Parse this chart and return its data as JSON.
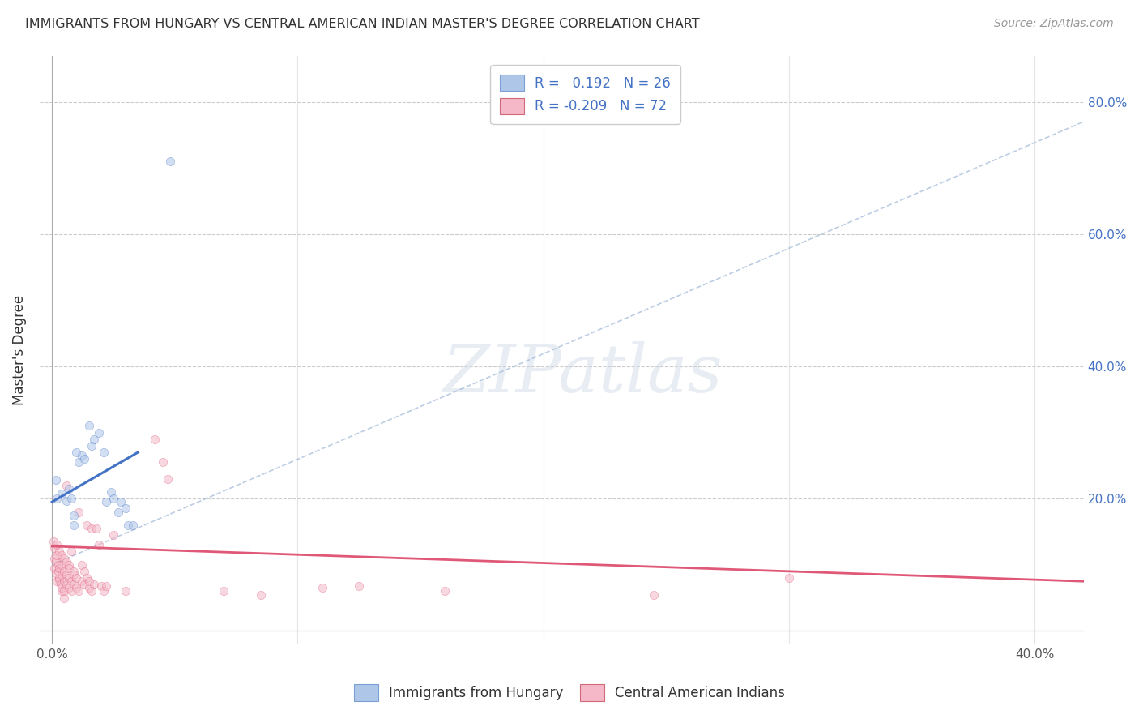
{
  "title": "IMMIGRANTS FROM HUNGARY VS CENTRAL AMERICAN INDIAN MASTER'S DEGREE CORRELATION CHART",
  "source": "Source: ZipAtlas.com",
  "ylabel": "Master's Degree",
  "xlabel_ticks": [
    "0.0%",
    "",
    "",
    "",
    "40.0%"
  ],
  "xtick_vals": [
    0.0,
    0.1,
    0.2,
    0.3,
    0.4
  ],
  "ylabel_right_ticks": [
    "",
    "20.0%",
    "40.0%",
    "60.0%",
    "80.0%"
  ],
  "ytick_vals": [
    0.0,
    0.2,
    0.4,
    0.6,
    0.8
  ],
  "xlim": [
    -0.005,
    0.42
  ],
  "ylim": [
    -0.02,
    0.87
  ],
  "legend1_label": "R =   0.192   N = 26",
  "legend2_label": "R = -0.209   N = 72",
  "legend1_color": "#aec6e8",
  "legend2_color": "#f4b8c8",
  "trendline1_color": "#4472c4",
  "trendline2_color": "#e05878",
  "watermark_text": "ZIPatlas",
  "blue_scatter": [
    [
      0.0015,
      0.228
    ],
    [
      0.004,
      0.207
    ],
    [
      0.006,
      0.197
    ],
    [
      0.007,
      0.215
    ],
    [
      0.008,
      0.2
    ],
    [
      0.009,
      0.175
    ],
    [
      0.009,
      0.16
    ],
    [
      0.01,
      0.27
    ],
    [
      0.011,
      0.255
    ],
    [
      0.012,
      0.265
    ],
    [
      0.013,
      0.26
    ],
    [
      0.015,
      0.31
    ],
    [
      0.016,
      0.28
    ],
    [
      0.017,
      0.29
    ],
    [
      0.019,
      0.3
    ],
    [
      0.021,
      0.27
    ],
    [
      0.022,
      0.195
    ],
    [
      0.024,
      0.21
    ],
    [
      0.025,
      0.2
    ],
    [
      0.027,
      0.18
    ],
    [
      0.028,
      0.195
    ],
    [
      0.03,
      0.185
    ],
    [
      0.031,
      0.16
    ],
    [
      0.033,
      0.16
    ],
    [
      0.048,
      0.71
    ],
    [
      0.002,
      0.2
    ]
  ],
  "pink_scatter": [
    [
      0.0005,
      0.135
    ],
    [
      0.0008,
      0.11
    ],
    [
      0.001,
      0.095
    ],
    [
      0.001,
      0.125
    ],
    [
      0.0015,
      0.105
    ],
    [
      0.0015,
      0.088
    ],
    [
      0.002,
      0.075
    ],
    [
      0.002,
      0.13
    ],
    [
      0.002,
      0.115
    ],
    [
      0.0025,
      0.1
    ],
    [
      0.0025,
      0.09
    ],
    [
      0.003,
      0.078
    ],
    [
      0.003,
      0.12
    ],
    [
      0.003,
      0.095
    ],
    [
      0.003,
      0.08
    ],
    [
      0.0035,
      0.07
    ],
    [
      0.004,
      0.06
    ],
    [
      0.004,
      0.115
    ],
    [
      0.004,
      0.1
    ],
    [
      0.004,
      0.085
    ],
    [
      0.004,
      0.065
    ],
    [
      0.005,
      0.05
    ],
    [
      0.005,
      0.11
    ],
    [
      0.005,
      0.09
    ],
    [
      0.005,
      0.075
    ],
    [
      0.005,
      0.06
    ],
    [
      0.006,
      0.22
    ],
    [
      0.006,
      0.105
    ],
    [
      0.006,
      0.085
    ],
    [
      0.006,
      0.07
    ],
    [
      0.007,
      0.1
    ],
    [
      0.007,
      0.08
    ],
    [
      0.007,
      0.065
    ],
    [
      0.007,
      0.095
    ],
    [
      0.008,
      0.075
    ],
    [
      0.008,
      0.06
    ],
    [
      0.008,
      0.12
    ],
    [
      0.009,
      0.09
    ],
    [
      0.009,
      0.07
    ],
    [
      0.009,
      0.085
    ],
    [
      0.01,
      0.065
    ],
    [
      0.01,
      0.08
    ],
    [
      0.011,
      0.06
    ],
    [
      0.011,
      0.18
    ],
    [
      0.012,
      0.1
    ],
    [
      0.012,
      0.075
    ],
    [
      0.013,
      0.09
    ],
    [
      0.013,
      0.07
    ],
    [
      0.014,
      0.16
    ],
    [
      0.014,
      0.08
    ],
    [
      0.015,
      0.065
    ],
    [
      0.015,
      0.075
    ],
    [
      0.016,
      0.06
    ],
    [
      0.016,
      0.155
    ],
    [
      0.017,
      0.07
    ],
    [
      0.018,
      0.155
    ],
    [
      0.019,
      0.13
    ],
    [
      0.02,
      0.068
    ],
    [
      0.021,
      0.06
    ],
    [
      0.022,
      0.068
    ],
    [
      0.025,
      0.145
    ],
    [
      0.03,
      0.06
    ],
    [
      0.042,
      0.29
    ],
    [
      0.045,
      0.255
    ],
    [
      0.047,
      0.23
    ],
    [
      0.07,
      0.06
    ],
    [
      0.085,
      0.055
    ],
    [
      0.11,
      0.065
    ],
    [
      0.125,
      0.068
    ],
    [
      0.16,
      0.06
    ],
    [
      0.245,
      0.055
    ],
    [
      0.3,
      0.08
    ]
  ],
  "trendline1_x": [
    0.0,
    0.035
  ],
  "trendline1_y": [
    0.195,
    0.27
  ],
  "trendline2_x": [
    0.0,
    0.42
  ],
  "trendline2_y": [
    0.128,
    0.075
  ],
  "dashed_line_x": [
    0.0,
    0.42
  ],
  "dashed_line_y": [
    0.1,
    0.77
  ],
  "grid_color": "#cccccc",
  "background_color": "#ffffff",
  "scatter_alpha": 0.55,
  "scatter_size": 55
}
